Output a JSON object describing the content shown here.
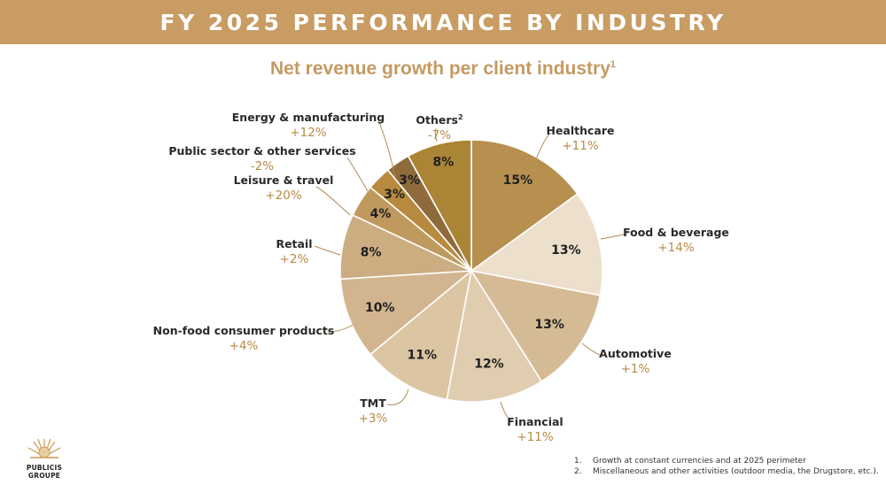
{
  "header": {
    "title": "FY 2025 PERFORMANCE BY INDUSTRY"
  },
  "chart_data": {
    "type": "pie",
    "title": "Net revenue growth per client industry",
    "title_footnote": "1",
    "start": "12 o'clock",
    "direction": "clockwise",
    "slices": [
      {
        "name": "Healthcare",
        "share": 15,
        "share_label": "15%",
        "growth": "+11%",
        "color": "#b78f4f"
      },
      {
        "name": "Food & beverage",
        "share": 13,
        "share_label": "13%",
        "growth": "+14%",
        "color": "#ecdfcc"
      },
      {
        "name": "Automotive",
        "share": 13,
        "share_label": "13%",
        "growth": "+1%",
        "color": "#d5bb95"
      },
      {
        "name": "Financial",
        "share": 12,
        "share_label": "12%",
        "growth": "+11%",
        "color": "#e0cdaf"
      },
      {
        "name": "TMT",
        "share": 11,
        "share_label": "11%",
        "growth": "+3%",
        "color": "#dcc5a2"
      },
      {
        "name": "Non-food consumer products",
        "share": 10,
        "share_label": "10%",
        "growth": "+4%",
        "color": "#d2b58e"
      },
      {
        "name": "Retail",
        "share": 8,
        "share_label": "8%",
        "growth": "+2%",
        "color": "#ccad82"
      },
      {
        "name": "Leisure & travel",
        "share": 4,
        "share_label": "4%",
        "growth": "+20%",
        "color": "#c0995f"
      },
      {
        "name": "Public sector & other services",
        "share": 3,
        "share_label": "3%",
        "growth": "-2%",
        "color": "#b88a40"
      },
      {
        "name": "Energy & manufacturing",
        "share": 3,
        "share_label": "3%",
        "growth": "+12%",
        "color": "#8f6b3b"
      },
      {
        "name": "Others",
        "name_footnote": "2",
        "share": 8,
        "share_label": "8%",
        "growth": "-7%",
        "color": "#ab8536"
      }
    ]
  },
  "footnotes": [
    {
      "num": "1.",
      "text": "Growth at constant currencies and at 2025 perimeter"
    },
    {
      "num": "2.",
      "text": "Miscellaneous and other activities (outdoor media, the Drugstore, etc.)."
    }
  ],
  "logo": {
    "line1": "PUBLICIS",
    "line2": "GROUPE"
  },
  "colors": {
    "banner": "#c89c63",
    "accent_text": "#c49a62",
    "growth_text": "#b98a45"
  }
}
